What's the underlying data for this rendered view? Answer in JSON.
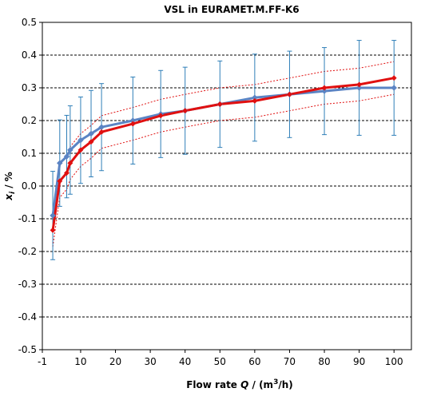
{
  "chart_data": {
    "type": "line",
    "title": "VSL in EURAMET.M.FF-K6",
    "xlabel": {
      "prefix": "Flow rate ",
      "var": "Q",
      "mid": " / (m",
      "sup": "3",
      "suffix": "/h)"
    },
    "ylabel": {
      "var": "x",
      "sub": "i",
      "suffix": " / %"
    },
    "xlim": [
      -1,
      105
    ],
    "ylim": [
      -0.5,
      0.5
    ],
    "xticks": [
      -1,
      10,
      20,
      30,
      40,
      50,
      60,
      70,
      80,
      90,
      100
    ],
    "xtick_labels": [
      "-1",
      "10",
      "20",
      "30",
      "40",
      "50",
      "60",
      "70",
      "80",
      "90",
      "100"
    ],
    "yticks": [
      -0.5,
      -0.4,
      -0.3,
      -0.2,
      -0.1,
      0.0,
      0.1,
      0.2,
      0.3,
      0.4,
      0.5
    ],
    "ytick_labels": [
      "-0.5",
      "-0.4",
      "-0.3",
      "-0.2",
      "-0.1",
      "0.0",
      "0.1",
      "0.2",
      "0.3",
      "0.4",
      "0.5"
    ],
    "grid": "horizontal dashed",
    "legend": "none",
    "colors": {
      "blue": "#5b84c4",
      "red": "#e01010",
      "errorbar": "#2f7fb8",
      "band": "#e01010",
      "grid": "#000000"
    },
    "series": [
      {
        "style": "blue-line-diamond-markers-with-error-bars",
        "x": [
          2,
          4,
          6,
          7,
          10,
          13,
          16,
          25,
          33,
          40,
          50,
          60,
          70,
          80,
          90,
          100
        ],
        "y": [
          -0.09,
          0.07,
          0.09,
          0.11,
          0.14,
          0.16,
          0.18,
          0.2,
          0.22,
          0.23,
          0.25,
          0.27,
          0.28,
          0.29,
          0.3,
          0.3
        ],
        "err": [
          0.135,
          0.132,
          0.126,
          0.135,
          0.132,
          0.132,
          0.133,
          0.133,
          0.133,
          0.133,
          0.132,
          0.133,
          0.132,
          0.133,
          0.145,
          0.145
        ]
      },
      {
        "style": "red-line-diamond-markers",
        "x": [
          2,
          4,
          6,
          7,
          10,
          13,
          16,
          25,
          33,
          40,
          50,
          60,
          70,
          80,
          90,
          100
        ],
        "y": [
          -0.135,
          0.015,
          0.04,
          0.07,
          0.11,
          0.135,
          0.165,
          0.19,
          0.215,
          0.23,
          0.25,
          0.26,
          0.28,
          0.3,
          0.31,
          0.33
        ]
      },
      {
        "style": "red-dotted-upper-band",
        "x": [
          2,
          4,
          6,
          7,
          10,
          13,
          16,
          25,
          33,
          40,
          50,
          60,
          70,
          80,
          90,
          100
        ],
        "y": [
          -0.085,
          0.065,
          0.09,
          0.12,
          0.16,
          0.185,
          0.215,
          0.24,
          0.265,
          0.28,
          0.3,
          0.31,
          0.33,
          0.35,
          0.36,
          0.38
        ]
      },
      {
        "style": "red-dotted-lower-band",
        "x": [
          2,
          4,
          6,
          7,
          10,
          13,
          16,
          25,
          33,
          40,
          50,
          60,
          70,
          80,
          90,
          100
        ],
        "y": [
          -0.185,
          -0.035,
          -0.01,
          0.02,
          0.06,
          0.085,
          0.115,
          0.14,
          0.165,
          0.18,
          0.2,
          0.21,
          0.23,
          0.25,
          0.26,
          0.28
        ]
      }
    ]
  }
}
